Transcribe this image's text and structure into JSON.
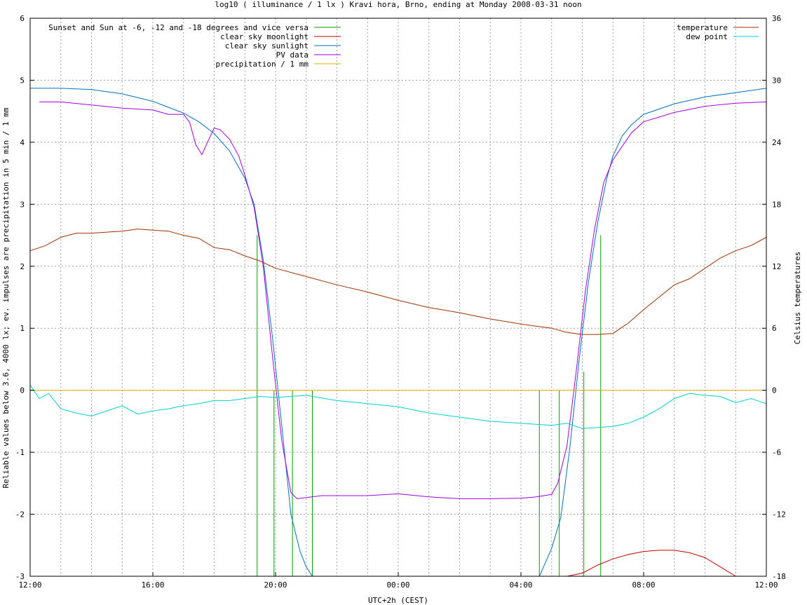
{
  "chart_data": {
    "type": "line",
    "title": "log10 ( illuminance / 1 lx ) Kravi hora, Brno, ending at Monday 2008-03-31 noon",
    "xlabel": "UTC+2h (CEST)",
    "ylabel": "Reliable values below 3.6, 4000 lx; ev. impulses are precipitation in 5 min / 1 mm",
    "y2label": "Celsius temperatures",
    "xrange": [
      12,
      36
    ],
    "ylim": [
      -3,
      6
    ],
    "y2lim": [
      -18,
      36
    ],
    "grid": true,
    "x_ticks": [
      {
        "v": 12,
        "label": "12:00"
      },
      {
        "v": 16,
        "label": "16:00"
      },
      {
        "v": 20,
        "label": "20:00"
      },
      {
        "v": 24,
        "label": "00:00"
      },
      {
        "v": 28,
        "label": "04:00"
      },
      {
        "v": 32,
        "label": "08:00"
      },
      {
        "v": 36,
        "label": "12:00"
      }
    ],
    "y_ticks": [
      {
        "v": 6,
        "label": "6"
      },
      {
        "v": 5,
        "label": "5"
      },
      {
        "v": 4,
        "label": "4"
      },
      {
        "v": 3,
        "label": "3"
      },
      {
        "v": 2,
        "label": "2"
      },
      {
        "v": 1,
        "label": "1"
      },
      {
        "v": 0,
        "label": "0"
      },
      {
        "v": -1,
        "label": "-1"
      },
      {
        "v": -2,
        "label": "-2"
      },
      {
        "v": -3,
        "label": "-3"
      }
    ],
    "y2_ticks": [
      {
        "v": 36,
        "label": "36"
      },
      {
        "v": 30,
        "label": "30"
      },
      {
        "v": 24,
        "label": "24"
      },
      {
        "v": 18,
        "label": "18"
      },
      {
        "v": 12,
        "label": "12"
      },
      {
        "v": 6,
        "label": "6"
      },
      {
        "v": 0,
        "label": "0"
      },
      {
        "v": -6,
        "label": "-6"
      },
      {
        "v": -12,
        "label": "-12"
      },
      {
        "v": -18,
        "label": "-18"
      }
    ],
    "legend_left": [
      {
        "name": "Sunset and Sun at -6, -12 and -18 degrees and vice versa",
        "color": "#00a000"
      },
      {
        "name": "clear sky moonlight",
        "color": "#c00000"
      },
      {
        "name": "clear sky sunlight",
        "color": "#0070c0"
      },
      {
        "name": "PV data",
        "color": "#a000e0"
      },
      {
        "name": "precipitation / 1 mm",
        "color": "#e0b000"
      }
    ],
    "legend_right": [
      {
        "name": "temperature",
        "color": "#a03000"
      },
      {
        "name": "dew point",
        "color": "#00d0d0"
      }
    ],
    "sun_markers": [
      {
        "x": 19.4,
        "top": 2.5
      },
      {
        "x": 19.95,
        "top": 0.0
      },
      {
        "x": 20.55,
        "top": 0.0
      },
      {
        "x": 21.2,
        "top": 0.0
      },
      {
        "x": 28.6,
        "top": 0.0
      },
      {
        "x": 29.25,
        "top": 0.0
      },
      {
        "x": 30.05,
        "top": 0.3
      },
      {
        "x": 30.6,
        "top": 2.5
      }
    ],
    "series": [
      {
        "name": "clear sky sunlight",
        "axis": "y",
        "x": [
          12.0,
          13.0,
          14.0,
          15.0,
          16.0,
          17.0,
          17.5,
          18.0,
          18.5,
          19.0,
          19.3,
          19.6,
          19.9,
          20.2,
          20.5,
          20.8,
          21.0,
          21.2,
          28.6,
          29.0,
          29.3,
          29.6,
          29.9,
          30.2,
          30.5,
          30.8,
          31.0,
          31.3,
          31.6,
          32.0,
          33.0,
          34.0,
          35.0,
          36.0
        ],
        "values": [
          4.87,
          4.87,
          4.85,
          4.78,
          4.66,
          4.47,
          4.33,
          4.14,
          3.86,
          3.42,
          3.0,
          2.1,
          0.85,
          -0.55,
          -2.0,
          -2.6,
          -2.85,
          -3.0,
          -3.0,
          -2.55,
          -2.05,
          -0.9,
          0.5,
          1.75,
          2.7,
          3.42,
          3.78,
          4.1,
          4.28,
          4.45,
          4.62,
          4.73,
          4.8,
          4.87
        ]
      },
      {
        "name": "PV data",
        "axis": "y",
        "x": [
          12.3,
          13.0,
          14.0,
          15.0,
          16.0,
          16.5,
          17.0,
          17.2,
          17.4,
          17.6,
          17.8,
          18.0,
          18.2,
          18.5,
          18.8,
          19.0,
          19.3,
          19.6,
          19.9,
          20.2,
          20.5,
          20.7,
          21.0,
          21.5,
          22.0,
          23.0,
          24.0,
          25.0,
          26.0,
          27.0,
          28.0,
          28.5,
          29.0,
          29.2,
          29.5,
          29.8,
          30.1,
          30.4,
          30.7,
          31.0,
          31.2,
          31.6,
          32.0,
          33.0,
          34.0,
          35.0,
          36.0
        ],
        "values": [
          4.65,
          4.65,
          4.6,
          4.55,
          4.52,
          4.45,
          4.45,
          4.32,
          3.96,
          3.8,
          4.02,
          4.23,
          4.2,
          4.05,
          3.78,
          3.47,
          2.95,
          2.0,
          0.55,
          -0.8,
          -1.65,
          -1.75,
          -1.73,
          -1.7,
          -1.7,
          -1.7,
          -1.67,
          -1.72,
          -1.75,
          -1.75,
          -1.74,
          -1.72,
          -1.68,
          -1.5,
          -0.9,
          0.3,
          1.6,
          2.6,
          3.35,
          3.72,
          3.86,
          4.15,
          4.33,
          4.48,
          4.58,
          4.63,
          4.65
        ]
      },
      {
        "name": "clear sky moonlight",
        "axis": "y",
        "x": [
          29.5,
          30.0,
          30.5,
          31.0,
          31.5,
          32.0,
          32.5,
          33.0,
          33.5,
          34.0,
          34.5,
          35.0
        ],
        "values": [
          -3.0,
          -2.95,
          -2.82,
          -2.72,
          -2.65,
          -2.6,
          -2.58,
          -2.58,
          -2.62,
          -2.7,
          -2.85,
          -3.0
        ]
      },
      {
        "name": "precipitation / 1 mm",
        "axis": "y",
        "x": [
          12.0,
          36.0
        ],
        "values": [
          0.0,
          0.0
        ]
      },
      {
        "name": "temperature",
        "axis": "y2",
        "x": [
          12.0,
          12.5,
          13.0,
          13.5,
          14.0,
          14.5,
          15.0,
          15.5,
          16.0,
          16.5,
          17.0,
          17.5,
          18.0,
          18.5,
          19.0,
          19.5,
          20.0,
          21.0,
          22.0,
          23.0,
          24.0,
          25.0,
          26.0,
          27.0,
          28.0,
          29.0,
          29.5,
          30.0,
          30.5,
          31.0,
          31.5,
          32.0,
          32.5,
          33.0,
          33.5,
          34.0,
          34.5,
          35.0,
          35.5,
          36.0
        ],
        "values": [
          13.5,
          14.0,
          14.8,
          15.2,
          15.2,
          15.3,
          15.4,
          15.6,
          15.5,
          15.4,
          15.0,
          14.7,
          13.8,
          13.6,
          13.0,
          12.5,
          11.8,
          11.0,
          10.2,
          9.5,
          8.7,
          8.0,
          7.5,
          6.9,
          6.4,
          6.0,
          5.6,
          5.4,
          5.4,
          5.5,
          6.5,
          7.8,
          9.0,
          10.2,
          10.8,
          11.8,
          12.8,
          13.5,
          14.0,
          14.8
        ]
      },
      {
        "name": "dew point",
        "axis": "y2",
        "x": [
          12.0,
          12.3,
          12.6,
          13.0,
          13.5,
          14.0,
          14.5,
          15.0,
          15.5,
          16.0,
          16.5,
          17.0,
          17.5,
          18.0,
          18.5,
          19.0,
          19.5,
          20.0,
          21.0,
          22.0,
          23.0,
          24.0,
          25.0,
          26.0,
          27.0,
          28.0,
          29.0,
          29.5,
          30.0,
          30.5,
          31.0,
          31.5,
          32.0,
          32.5,
          33.0,
          33.5,
          34.0,
          34.5,
          35.0,
          35.5,
          36.0
        ],
        "values": [
          0.5,
          -0.8,
          -0.3,
          -1.8,
          -2.2,
          -2.5,
          -2.0,
          -1.5,
          -2.3,
          -2.0,
          -1.8,
          -1.5,
          -1.3,
          -1.0,
          -1.0,
          -0.8,
          -0.6,
          -0.7,
          -0.5,
          -1.0,
          -1.3,
          -1.6,
          -2.2,
          -2.6,
          -3.0,
          -3.2,
          -3.4,
          -3.2,
          -3.7,
          -3.6,
          -3.5,
          -3.2,
          -2.6,
          -1.8,
          -0.8,
          -0.3,
          -0.5,
          -0.6,
          -1.2,
          -0.8,
          -1.3
        ]
      }
    ]
  }
}
